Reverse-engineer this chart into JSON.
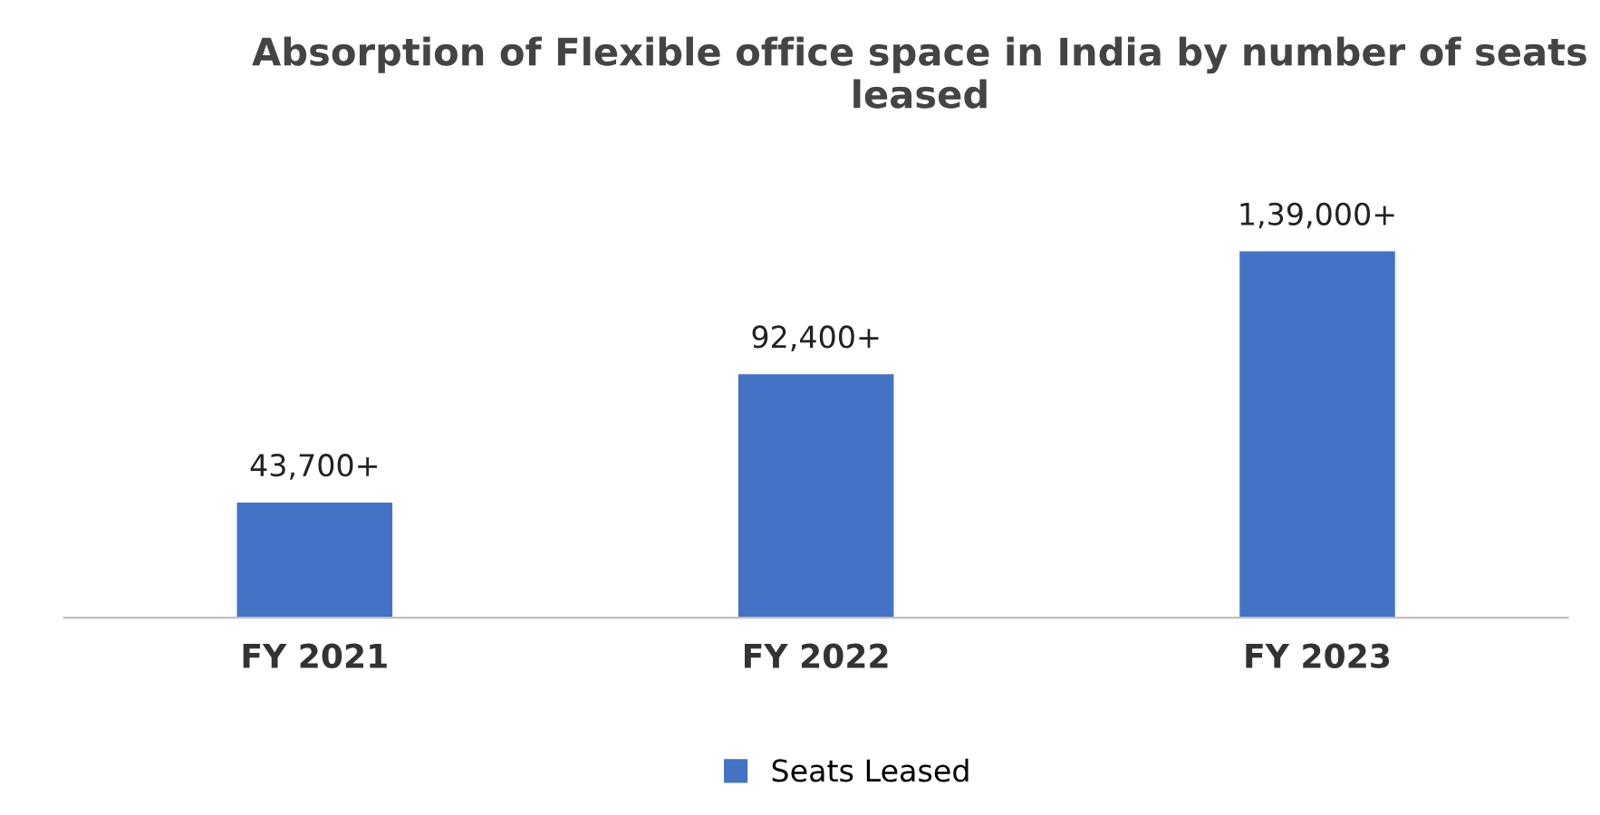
{
  "chart_data": {
    "type": "bar",
    "title": "Absorption of Flexible office space in India by number of seats leased",
    "categories": [
      "FY 2021",
      "FY 2022",
      "FY 2023"
    ],
    "series": [
      {
        "name": "Seats Leased",
        "color": "#4472c4",
        "values": [
          43700,
          92400,
          139000
        ],
        "value_labels": [
          "43,700+",
          "92,400+",
          "1,39,000+"
        ]
      }
    ],
    "legend": "bottom",
    "grid": false
  }
}
